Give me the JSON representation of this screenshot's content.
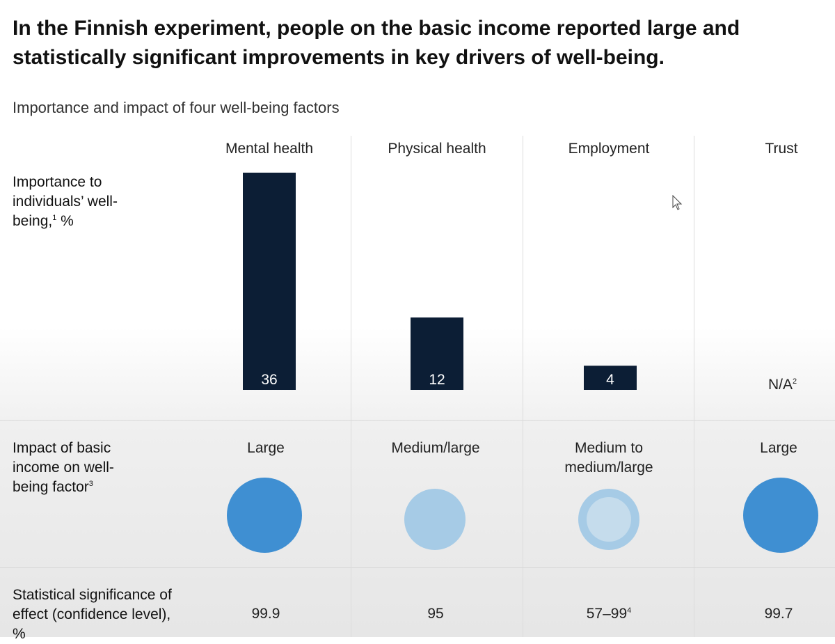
{
  "title": "In the Finnish experiment, people on the basic income reported large and statistically significant improvements in key drivers of well-being.",
  "subtitle": "Importance and impact of four well-being factors",
  "rows": {
    "importance": {
      "label": "Importance to individuals’ well-being,",
      "note": "1",
      "unit": " %"
    },
    "impact": {
      "label": "Impact of basic income on well-being factor",
      "note": "3"
    },
    "significance": {
      "label": "Statistical significance of effect (confidence level), %"
    }
  },
  "na_text": "N/A",
  "na_note": "2",
  "colors": {
    "bar": "#0c1e35",
    "bar_label": "#ffffff",
    "large": "#3f8fd2",
    "medium_large": "#a6cbe6",
    "medium_outer": "#a6cbe6",
    "medium_inner": "#c5dcec"
  },
  "chart_data": {
    "type": "bar",
    "categories": [
      "Mental health",
      "Physical health",
      "Employment",
      "Trust"
    ],
    "values": [
      36,
      12,
      4,
      null
    ],
    "value_labels": [
      "36",
      "12",
      "4",
      ""
    ],
    "impact": [
      "Large",
      "Medium/large",
      "Medium to medium/large",
      "Large"
    ],
    "significance": [
      "99.9",
      "95",
      "57–99",
      "99.7"
    ],
    "significance_notes": [
      "",
      "",
      "4",
      ""
    ],
    "title": "Importance and impact of four well-being factors",
    "ylabel": "Importance to individuals’ well-being, %",
    "legend": "none",
    "grid": false
  }
}
